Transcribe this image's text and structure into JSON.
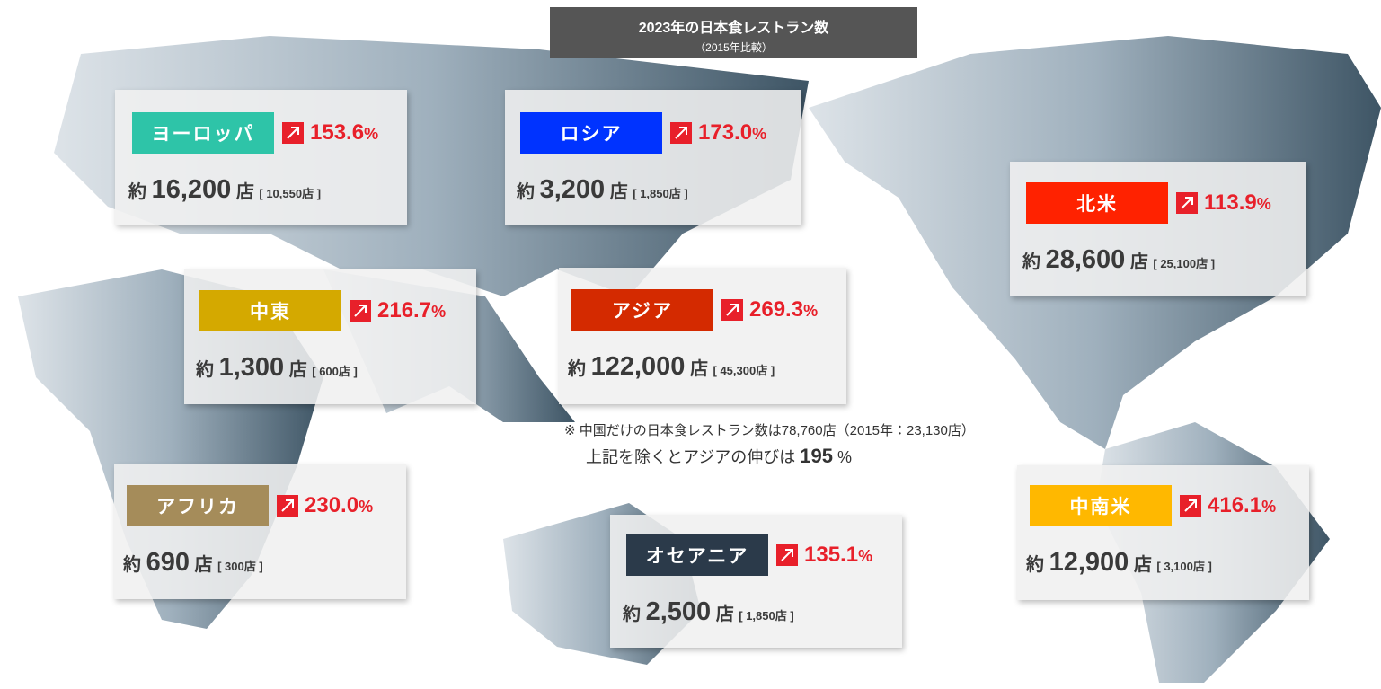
{
  "header": {
    "title": "2023年の日本食レストラン数",
    "subtitle": "（2015年比較）"
  },
  "common": {
    "prefix": "約",
    "unit": "店",
    "percent": "%"
  },
  "regions": [
    {
      "name": "ヨーロッパ",
      "color": "#2ec4a8",
      "growth": "153.6",
      "count": "16,200",
      "previous": "[ 10,550店 ]"
    },
    {
      "name": "ロシア",
      "color": "#0033ff",
      "growth": "173.0",
      "count": "3,200",
      "previous": "[ 1,850店 ]"
    },
    {
      "name": "北米",
      "color": "#ff2200",
      "growth": "113.9",
      "count": "28,600",
      "previous": "[ 25,100店 ]"
    },
    {
      "name": "中東",
      "color": "#d4a900",
      "growth": "216.7",
      "count": "1,300",
      "previous": "[ 600店 ]"
    },
    {
      "name": "アジア",
      "color": "#d42a00",
      "growth": "269.3",
      "count": "122,000",
      "previous": "[ 45,300店 ]"
    },
    {
      "name": "アフリカ",
      "color": "#a58c5a",
      "growth": "230.0",
      "count": "690",
      "previous": "[ 300店 ]"
    },
    {
      "name": "オセアニア",
      "color": "#2b3a4a",
      "growth": "135.1",
      "count": "2,500",
      "previous": "[ 1,850店 ]"
    },
    {
      "name": "中南米",
      "color": "#ffb800",
      "growth": "416.1",
      "count": "12,900",
      "previous": "[ 3,100店 ]"
    }
  ],
  "note": {
    "line1": "※ 中国だけの日本食レストラン数は78,760店（2015年：23,130店）",
    "line2_text": "上記を除くとアジアの伸びは",
    "line2_value": "195",
    "line2_unit": "%"
  }
}
